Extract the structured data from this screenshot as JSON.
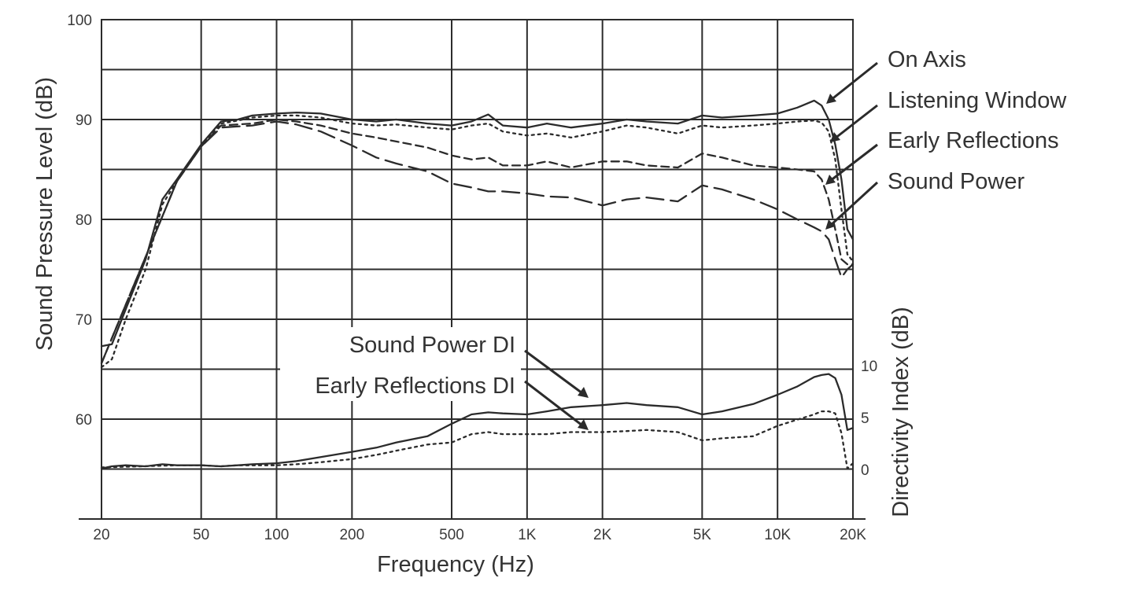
{
  "chart_data": {
    "type": "line",
    "xlabel": "Frequency (Hz)",
    "ylabel": "Sound Pressure Level (dB)",
    "y2label": "Directivity Index (dB)",
    "x_scale": "log",
    "xlim": [
      20,
      20000
    ],
    "ylim": [
      50,
      100
    ],
    "y2lim": [
      0,
      10
    ],
    "grid": true,
    "x_ticks": [
      {
        "value": 20,
        "label": "20"
      },
      {
        "value": 50,
        "label": "50"
      },
      {
        "value": 100,
        "label": "100"
      },
      {
        "value": 200,
        "label": "200"
      },
      {
        "value": 500,
        "label": "500"
      },
      {
        "value": 1000,
        "label": "1K"
      },
      {
        "value": 2000,
        "label": "2K"
      },
      {
        "value": 5000,
        "label": "5K"
      },
      {
        "value": 10000,
        "label": "10K"
      },
      {
        "value": 20000,
        "label": "20K"
      }
    ],
    "y_ticks": [
      {
        "value": 100,
        "label": "100"
      },
      {
        "value": 90,
        "label": "90"
      },
      {
        "value": 80,
        "label": "80"
      },
      {
        "value": 70,
        "label": "70"
      },
      {
        "value": 60,
        "label": "60"
      }
    ],
    "y2_ticks": [
      {
        "value": 10,
        "label": "10"
      },
      {
        "value": 5,
        "label": "5"
      },
      {
        "value": 0,
        "label": "0"
      }
    ],
    "series": [
      {
        "name": "On Axis",
        "axis": "left",
        "dash": "solid",
        "x": [
          20,
          22,
          25,
          30,
          35,
          40,
          50,
          60,
          70,
          80,
          100,
          120,
          150,
          200,
          250,
          300,
          400,
          500,
          600,
          700,
          800,
          1000,
          1200,
          1500,
          2000,
          2500,
          3000,
          4000,
          5000,
          6000,
          8000,
          10000,
          12000,
          14000,
          15000,
          16000,
          17000,
          18000,
          19000,
          20000
        ],
        "y": [
          67.3,
          67.5,
          71,
          76,
          82,
          84,
          87.5,
          89.8,
          90,
          90.4,
          90.6,
          90.7,
          90.6,
          90.0,
          89.8,
          90.0,
          89.6,
          89.4,
          89.8,
          90.5,
          89.4,
          89.2,
          89.6,
          89.2,
          89.6,
          90,
          89.8,
          89.6,
          90.4,
          90.2,
          90.4,
          90.6,
          91.2,
          91.9,
          91.4,
          90.0,
          87.5,
          84.0,
          79.0,
          78.0
        ]
      },
      {
        "name": "Listening Window",
        "axis": "left",
        "dash": "short",
        "x": [
          20,
          22,
          25,
          30,
          35,
          40,
          50,
          60,
          70,
          80,
          100,
          120,
          150,
          200,
          250,
          300,
          400,
          500,
          600,
          700,
          800,
          1000,
          1200,
          1500,
          2000,
          2500,
          3000,
          4000,
          5000,
          6000,
          8000,
          10000,
          12000,
          14000,
          15000,
          16000,
          17000,
          18000,
          19000,
          20000
        ],
        "y": [
          65.2,
          66,
          70,
          75,
          81.5,
          83.8,
          87.4,
          89.6,
          89.9,
          90.2,
          90.4,
          90.4,
          90.2,
          89.6,
          89.4,
          89.5,
          89.2,
          89.0,
          89.4,
          89.6,
          88.8,
          88.4,
          88.6,
          88.2,
          88.8,
          89.4,
          89.2,
          88.6,
          89.4,
          89.2,
          89.4,
          89.6,
          89.8,
          89.9,
          89.7,
          88.8,
          86.0,
          81.0,
          76.5,
          75.8
        ]
      },
      {
        "name": "Early Reflections",
        "axis": "left",
        "dash": "medium",
        "x": [
          20,
          40,
          50,
          60,
          80,
          100,
          120,
          150,
          200,
          250,
          300,
          400,
          500,
          600,
          700,
          800,
          1000,
          1200,
          1500,
          2000,
          2500,
          3000,
          4000,
          5000,
          6000,
          8000,
          10000,
          12000,
          14000,
          15000,
          16000,
          17000,
          18000,
          19000,
          20000
        ],
        "y": [
          65.6,
          83.8,
          87.3,
          89.4,
          89.6,
          90.0,
          89.8,
          89.4,
          88.6,
          88.2,
          87.8,
          87.2,
          86.4,
          86.0,
          86.2,
          85.4,
          85.4,
          85.8,
          85.2,
          85.8,
          85.8,
          85.4,
          85.2,
          86.6,
          86.2,
          85.4,
          85.2,
          85.0,
          84.8,
          84.0,
          82.0,
          79.0,
          76.0,
          75.5,
          75.5
        ]
      },
      {
        "name": "Sound Power",
        "axis": "left",
        "dash": "long",
        "x": [
          20,
          40,
          50,
          60,
          80,
          100,
          120,
          150,
          200,
          250,
          300,
          400,
          500,
          600,
          700,
          800,
          1000,
          1200,
          1500,
          2000,
          2500,
          3000,
          4000,
          5000,
          6000,
          8000,
          10000,
          12000,
          14000,
          15000,
          16000,
          17000,
          18000,
          19000,
          20000
        ],
        "y": [
          65.6,
          83.8,
          87.3,
          89.2,
          89.4,
          89.8,
          89.5,
          88.8,
          87.4,
          86.2,
          85.6,
          84.8,
          83.6,
          83.2,
          82.8,
          82.8,
          82.6,
          82.3,
          82.2,
          81.4,
          82.0,
          82.2,
          81.8,
          83.4,
          83.0,
          82.0,
          81.0,
          80.0,
          79.2,
          78.8,
          78.0,
          76.0,
          74.2,
          75.0,
          75.5
        ]
      },
      {
        "name": "Sound Power DI",
        "axis": "right",
        "dash": "solid",
        "x": [
          20,
          22,
          25,
          30,
          35,
          40,
          50,
          60,
          70,
          80,
          100,
          120,
          150,
          200,
          250,
          300,
          400,
          500,
          600,
          700,
          800,
          1000,
          1200,
          1500,
          2000,
          2500,
          3000,
          4000,
          5000,
          6000,
          8000,
          10000,
          12000,
          14000,
          15000,
          16000,
          17000,
          18000,
          19000,
          20000
        ],
        "y": [
          0.1,
          0.3,
          0.4,
          0.3,
          0.5,
          0.4,
          0.4,
          0.3,
          0.4,
          0.5,
          0.6,
          0.8,
          1.2,
          1.7,
          2.1,
          2.6,
          3.2,
          4.4,
          5.3,
          5.5,
          5.4,
          5.3,
          5.6,
          6.0,
          6.2,
          6.4,
          6.2,
          6.0,
          5.3,
          5.6,
          6.3,
          7.2,
          8.0,
          8.9,
          9.1,
          9.2,
          8.8,
          7.2,
          3.8,
          4.0
        ]
      },
      {
        "name": "Early Reflections DI",
        "axis": "right",
        "dash": "short",
        "x": [
          20,
          40,
          50,
          60,
          70,
          80,
          100,
          120,
          150,
          200,
          250,
          300,
          400,
          500,
          600,
          700,
          800,
          1000,
          1200,
          1500,
          2000,
          2500,
          3000,
          4000,
          5000,
          6000,
          8000,
          10000,
          12000,
          14000,
          15000,
          16000,
          17000,
          18000,
          19000,
          20000
        ],
        "y": [
          0.2,
          0.4,
          0.4,
          0.3,
          0.4,
          0.4,
          0.4,
          0.5,
          0.7,
          1.0,
          1.4,
          1.8,
          2.4,
          2.6,
          3.4,
          3.6,
          3.4,
          3.4,
          3.4,
          3.6,
          3.6,
          3.7,
          3.8,
          3.6,
          2.8,
          3.0,
          3.2,
          4.2,
          4.8,
          5.3,
          5.6,
          5.6,
          5.4,
          3.5,
          0.1,
          0.6
        ]
      }
    ],
    "legend": [
      {
        "label": "On Axis",
        "series": "On Axis"
      },
      {
        "label": "Listening Window",
        "series": "Listening Window"
      },
      {
        "label": "Early Reflections",
        "series": "Early Reflections"
      },
      {
        "label": "Sound Power",
        "series": "Sound Power"
      }
    ],
    "annotations": [
      {
        "label": "Sound Power DI",
        "series": "Sound Power DI"
      },
      {
        "label": "Early Reflections DI",
        "series": "Early Reflections DI"
      }
    ]
  }
}
